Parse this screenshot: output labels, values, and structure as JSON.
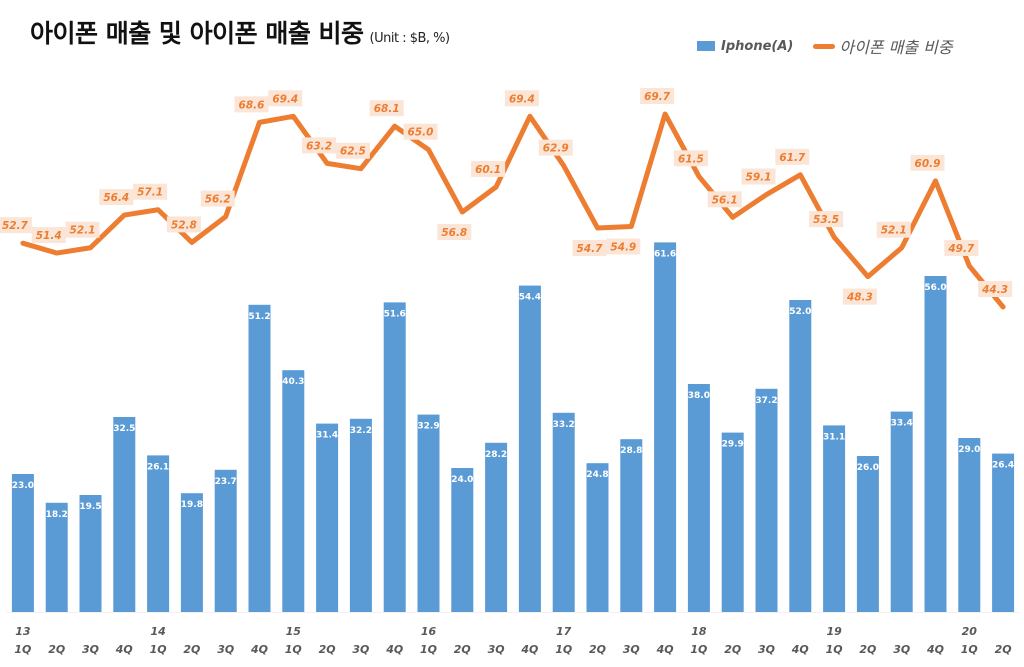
{
  "chart_data": {
    "type": "bar",
    "title": "아이폰 매출 및 아이폰 매출 비중",
    "unit": "(Unit : $B, %)",
    "xlabel": "",
    "ylabel": "",
    "grid": false,
    "legend_position": "top-right",
    "years": [
      "13",
      "",
      "",
      "",
      "14",
      "",
      "",
      "",
      "15",
      "",
      "",
      "",
      "16",
      "",
      "",
      "",
      "17",
      "",
      "",
      "",
      "18",
      "",
      "",
      "",
      "19",
      "",
      "",
      "",
      "20",
      ""
    ],
    "categories": [
      "1Q",
      "2Q",
      "3Q",
      "4Q",
      "1Q",
      "2Q",
      "3Q",
      "4Q",
      "1Q",
      "2Q",
      "3Q",
      "4Q",
      "1Q",
      "2Q",
      "3Q",
      "4Q",
      "1Q",
      "2Q",
      "3Q",
      "4Q",
      "1Q",
      "2Q",
      "3Q",
      "4Q",
      "1Q",
      "2Q",
      "3Q",
      "4Q",
      "1Q",
      "2Q"
    ],
    "series": [
      {
        "name": "Iphone(A)",
        "type": "bar",
        "color": "#5b9bd5",
        "values": [
          23.0,
          18.2,
          19.5,
          32.5,
          26.1,
          19.8,
          23.7,
          51.2,
          40.3,
          31.4,
          32.2,
          51.6,
          32.9,
          24.0,
          28.2,
          54.4,
          33.2,
          24.8,
          28.8,
          61.6,
          38.0,
          29.9,
          37.2,
          52.0,
          31.1,
          26.0,
          33.4,
          56.0,
          29.0,
          26.4
        ]
      },
      {
        "name": "아이폰 매출 비중",
        "type": "line",
        "color": "#ed7d31",
        "values": [
          52.7,
          51.4,
          52.1,
          56.4,
          57.1,
          52.8,
          56.2,
          68.6,
          69.4,
          63.2,
          62.5,
          68.1,
          65.0,
          56.8,
          60.1,
          69.4,
          62.9,
          54.7,
          54.9,
          69.7,
          61.5,
          56.1,
          59.1,
          61.7,
          53.5,
          48.3,
          52.1,
          60.9,
          49.7,
          44.3
        ]
      }
    ],
    "bar_ylim": [
      0,
      67
    ],
    "line_ylim": [
      0,
      100
    ]
  }
}
